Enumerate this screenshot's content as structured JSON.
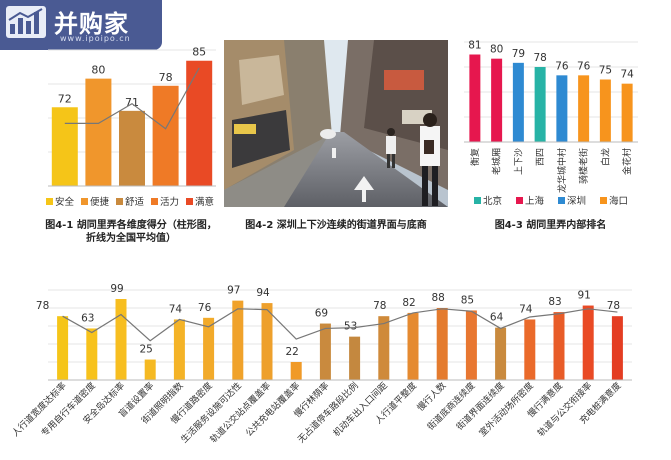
{
  "logo": {
    "name": "并购家",
    "url": "www.ipoipo.cn"
  },
  "captions": {
    "fig1": "图4-1 胡同里弄各维度得分（柱形图，折线为全国平均值）",
    "fig2": "图4-2 深圳上下沙连续的街道界面与底商",
    "fig3": "图4-3 胡同里弄内部排名"
  },
  "colors": {
    "safety": "#f5c518",
    "convenience": "#f0962c",
    "comfort": "#c98a3e",
    "vitality": "#ef7a26",
    "satisfaction": "#e94a25",
    "beijing": "#27b3a6",
    "shanghai": "#e6174e",
    "shenzhen": "#2e8ad2",
    "haikou": "#f7941d",
    "line": "#777777"
  },
  "chart_data": [
    {
      "type": "bar",
      "title": "",
      "categories": [
        "安全",
        "便捷",
        "舒适",
        "活力",
        "满意"
      ],
      "values": [
        72,
        80,
        71,
        78,
        85
      ],
      "series": [
        {
          "name": "",
          "values": [
            72,
            80,
            71,
            78,
            85
          ]
        },
        {
          "name": "",
          "values": [
            67.5,
            67.5,
            73,
            66,
            83
          ]
        }
      ],
      "legend": [
        "安全",
        "便捷",
        "舒适",
        "活力",
        "满意"
      ],
      "legend_position": "bottom",
      "grid": true
    },
    {
      "type": "bar",
      "title": "",
      "categories": [
        "衡复",
        "老城厢",
        "上下沙",
        "西四",
        "龙华城中村",
        "骑楼老街",
        "白龙",
        "金花村"
      ],
      "values": [
        81,
        80,
        79,
        78,
        76,
        76,
        75,
        74
      ],
      "groups": [
        "上海",
        "上海",
        "深圳",
        "北京",
        "深圳",
        "海口",
        "海口",
        "海口"
      ],
      "legend": [
        "北京",
        "上海",
        "深圳",
        "海口"
      ],
      "legend_position": "bottom",
      "grid": true
    },
    {
      "type": "bar",
      "title": "",
      "categories": [
        "人行道宽度达标率",
        "专用自行车道密度",
        "安全岛达标率",
        "盲道设置率",
        "街道照明指数",
        "慢行道路密度",
        "生活服务设施可达性",
        "轨道公交站点覆盖率",
        "公共充电站覆盖率",
        "慢行林荫率",
        "无占道停车路段比例",
        "机动车出入口间距",
        "人行道平整度",
        "慢行人数",
        "街道底商连续度",
        "街道界面连续度",
        "室外活动场所密度",
        "慢行满意度",
        "轨道与公交衔接率",
        "充电桩满意度"
      ],
      "values": [
        78,
        63,
        99,
        25,
        74,
        76,
        97,
        94,
        22,
        69,
        53,
        78,
        82,
        88,
        85,
        64,
        74,
        83,
        91,
        78
      ],
      "series": [
        {
          "name": "",
          "values": [
            78,
            63,
            99,
            25,
            74,
            76,
            97,
            94,
            22,
            69,
            53,
            78,
            82,
            88,
            85,
            64,
            74,
            83,
            91,
            78
          ]
        },
        {
          "name": "",
          "values": [
            78,
            58,
            80,
            48,
            74,
            65,
            87,
            86,
            50,
            63,
            64,
            69,
            82,
            87,
            84,
            63,
            77,
            81,
            87,
            83
          ]
        }
      ],
      "grid": true
    }
  ]
}
